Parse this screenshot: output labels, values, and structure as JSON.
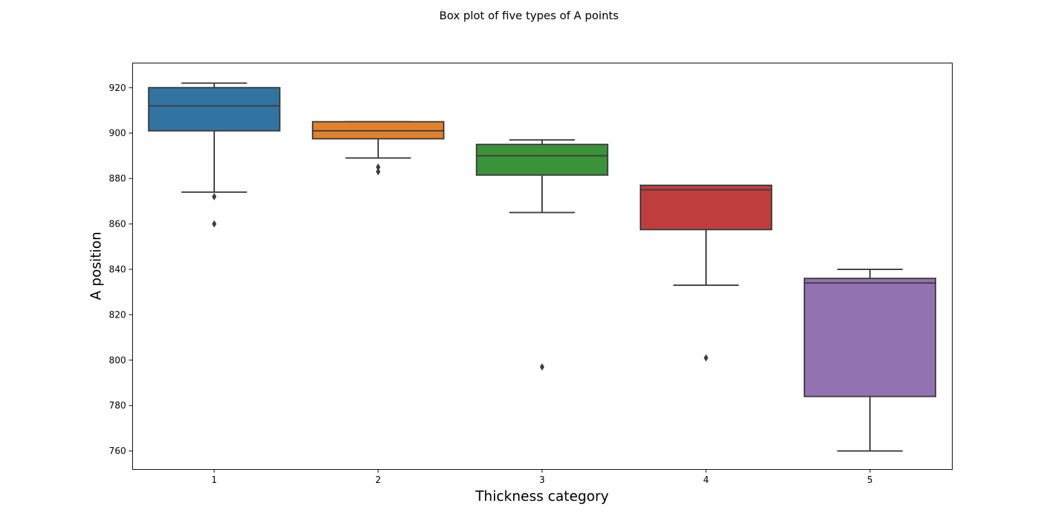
{
  "chart_data": {
    "type": "box",
    "title": "Box plot of five types of A points",
    "xlabel": "Thickness category",
    "ylabel": "A position",
    "categories": [
      "1",
      "2",
      "3",
      "4",
      "5"
    ],
    "ylim": [
      752,
      931
    ],
    "yticks": [
      760,
      780,
      800,
      820,
      840,
      860,
      880,
      900,
      920
    ],
    "grid": false,
    "boxes": [
      {
        "category": "1",
        "color": "#3274a1",
        "whisker_low": 874,
        "q1": 901,
        "median": 912,
        "q3": 920,
        "whisker_high": 922,
        "outliers": [
          872,
          860
        ]
      },
      {
        "category": "2",
        "color": "#e1812c",
        "whisker_low": 889,
        "q1": 897.5,
        "median": 901,
        "q3": 905,
        "whisker_high": 905,
        "outliers": [
          885,
          883
        ]
      },
      {
        "category": "3",
        "color": "#3a923a",
        "whisker_low": 865,
        "q1": 881.5,
        "median": 890,
        "q3": 895,
        "whisker_high": 897,
        "outliers": [
          797
        ]
      },
      {
        "category": "4",
        "color": "#c03d3e",
        "whisker_low": 833,
        "q1": 857.5,
        "median": 875,
        "q3": 877,
        "whisker_high": 877,
        "outliers": [
          801
        ]
      },
      {
        "category": "5",
        "color": "#9372b2",
        "whisker_low": 760,
        "q1": 784,
        "median": 834,
        "q3": 836,
        "whisker_high": 840,
        "outliers": []
      }
    ]
  }
}
